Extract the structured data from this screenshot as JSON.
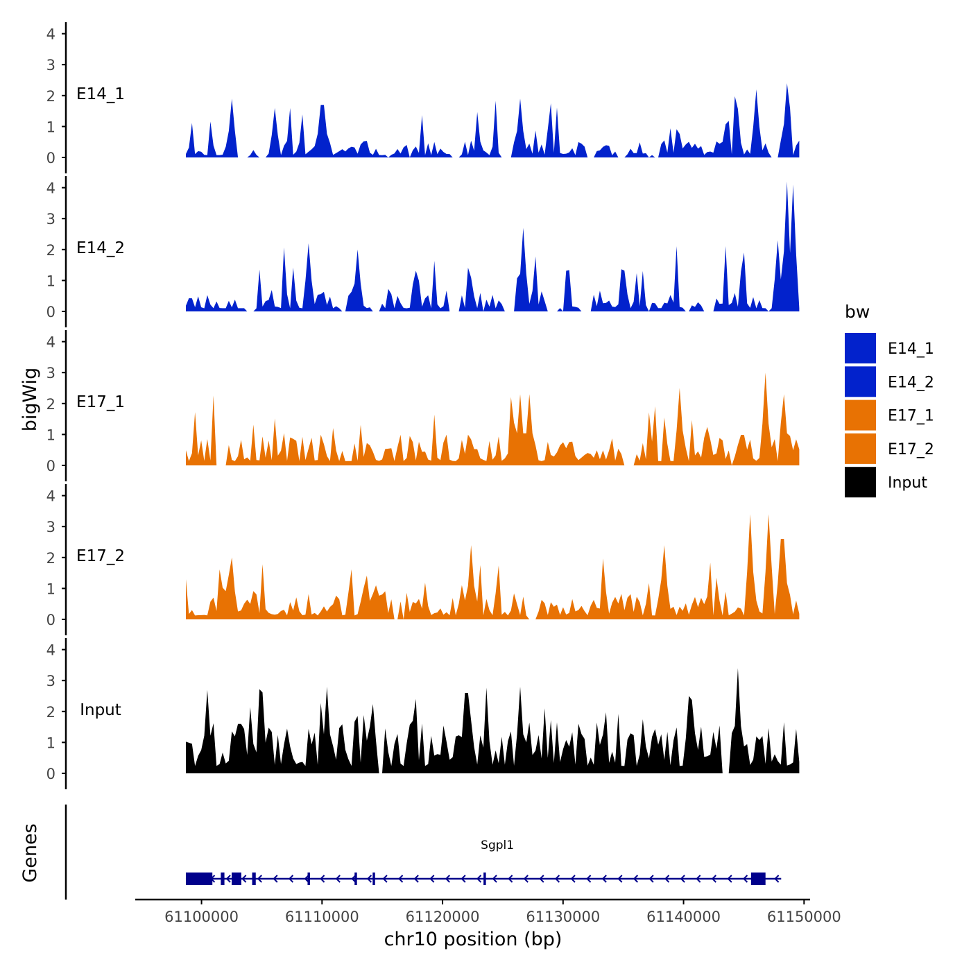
{
  "chart_data": {
    "type": "area",
    "title": "",
    "ylabel": "bigWig",
    "xlabel": "chr10 position (bp)",
    "chromosome": "chr10",
    "xlim": [
      61094500,
      61150500
    ],
    "ylim": [
      0,
      4.3
    ],
    "y_ticks": [
      "0",
      "1",
      "2",
      "3",
      "4"
    ],
    "x_ticks": [
      {
        "value": 61100000,
        "label": "61100000"
      },
      {
        "value": 61110000,
        "label": "61110000"
      },
      {
        "value": 61120000,
        "label": "61120000"
      },
      {
        "value": 61130000,
        "label": "61130000"
      },
      {
        "value": 61140000,
        "label": "61140000"
      },
      {
        "value": 61150000,
        "label": "61150000"
      }
    ],
    "legend": {
      "title": "bw",
      "position": "right",
      "entries": [
        {
          "label": "E14_1",
          "color": "#0222CC"
        },
        {
          "label": "E14_2",
          "color": "#0222CC"
        },
        {
          "label": "E17_1",
          "color": "#E87203"
        },
        {
          "label": "E17_2",
          "color": "#E87203"
        },
        {
          "label": "Input",
          "color": "#000000"
        }
      ]
    },
    "track_x_range": [
      61098700,
      61149600
    ],
    "bin_count": 200,
    "series": [
      {
        "name": "E14_1",
        "color": "#0222CC",
        "baseline": 0.3,
        "zero_frac": 0.15,
        "seed": 11,
        "peaks": [
          {
            "x": 61102500,
            "y": 1.9
          },
          {
            "x": 61106000,
            "y": 1.6
          },
          {
            "x": 61110000,
            "y": 1.7
          },
          {
            "x": 61126500,
            "y": 1.9
          },
          {
            "x": 61146000,
            "y": 2.2
          },
          {
            "x": 61148600,
            "y": 2.4
          }
        ]
      },
      {
        "name": "E14_2",
        "color": "#0222CC",
        "baseline": 0.4,
        "zero_frac": 0.15,
        "seed": 23,
        "peaks": [
          {
            "x": 61108800,
            "y": 2.2
          },
          {
            "x": 61113000,
            "y": 2.0
          },
          {
            "x": 61126700,
            "y": 2.7
          },
          {
            "x": 61147800,
            "y": 2.3
          },
          {
            "x": 61148600,
            "y": 4.2
          },
          {
            "x": 61149000,
            "y": 4.1
          }
        ]
      },
      {
        "name": "E17_1",
        "color": "#E87203",
        "baseline": 0.55,
        "zero_frac": 0.04,
        "seed": 37,
        "peaks": [
          {
            "x": 61126400,
            "y": 2.3
          },
          {
            "x": 61127200,
            "y": 2.3
          },
          {
            "x": 61139600,
            "y": 2.5
          },
          {
            "x": 61146900,
            "y": 3.0
          },
          {
            "x": 61148400,
            "y": 2.3
          }
        ]
      },
      {
        "name": "E17_2",
        "color": "#E87203",
        "baseline": 0.5,
        "zero_frac": 0.04,
        "seed": 53,
        "peaks": [
          {
            "x": 61102500,
            "y": 2.0
          },
          {
            "x": 61122400,
            "y": 2.4
          },
          {
            "x": 61138400,
            "y": 2.4
          },
          {
            "x": 61145600,
            "y": 3.4
          },
          {
            "x": 61147100,
            "y": 3.4
          },
          {
            "x": 61148200,
            "y": 2.6
          }
        ]
      },
      {
        "name": "Input",
        "color": "#000000",
        "baseline": 0.95,
        "zero_frac": 0.02,
        "seed": 71,
        "peaks": [
          {
            "x": 61100400,
            "y": 2.7
          },
          {
            "x": 61110500,
            "y": 2.8
          },
          {
            "x": 61122000,
            "y": 2.6
          },
          {
            "x": 61126400,
            "y": 2.8
          },
          {
            "x": 61140400,
            "y": 2.5
          },
          {
            "x": 61144600,
            "y": 3.4
          }
        ]
      }
    ],
    "genes_track": {
      "label": "Genes",
      "color": "#00008B",
      "genes": [
        {
          "name": "Sgpl1",
          "strand": "-",
          "start": 61098700,
          "end": 61148100,
          "exons": [
            [
              61098700,
              61100900
            ],
            [
              61101600,
              61101900
            ],
            [
              61102500,
              61103300
            ],
            [
              61104200,
              61104500
            ],
            [
              61108800,
              61109000
            ],
            [
              61112700,
              61112900
            ],
            [
              61114200,
              61114400
            ],
            [
              61123400,
              61123600
            ],
            [
              61145600,
              61146800
            ]
          ]
        }
      ]
    }
  }
}
